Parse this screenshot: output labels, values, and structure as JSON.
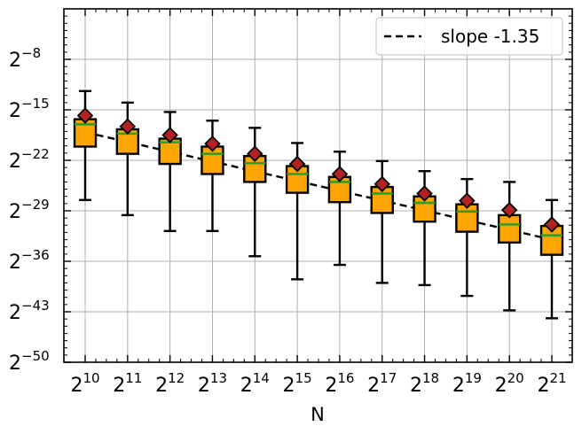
{
  "chart_data": {
    "type": "box",
    "xlabel": "N",
    "ylabel": "",
    "title": "",
    "x_base": 2,
    "y_base": 2,
    "x_exponents": [
      10,
      11,
      12,
      13,
      14,
      15,
      16,
      17,
      18,
      19,
      20,
      21
    ],
    "y_tick_exponents": [
      -8,
      -15,
      -22,
      -29,
      -36,
      -43,
      -50
    ],
    "ylim_exponent": [
      -50,
      -1
    ],
    "grid": true,
    "legend": {
      "position": "top-right",
      "entries": [
        {
          "label": "slope -1.35",
          "style": "dashed",
          "color": "#000000"
        }
      ]
    },
    "fit_line": {
      "slope": -1.35,
      "y_exponent_at_x10": -18.1,
      "y_exponent_at_x21": -33.0
    },
    "colors": {
      "box_fill": "#ffa500",
      "median": "#2ca02c",
      "mean_marker": "#b22222",
      "edge": "#000000",
      "grid": "#b0b0b0"
    },
    "boxes": [
      {
        "x_exp": 10,
        "whisker_low": -27.5,
        "q1": -20.1,
        "median": -17.0,
        "q3": -16.3,
        "whisker_high": -12.4,
        "mean": -15.8
      },
      {
        "x_exp": 11,
        "whisker_low": -29.6,
        "q1": -21.1,
        "median": -18.3,
        "q3": -17.7,
        "whisker_high": -14.0,
        "mean": -17.3
      },
      {
        "x_exp": 12,
        "whisker_low": -31.8,
        "q1": -22.5,
        "median": -19.5,
        "q3": -19.0,
        "whisker_high": -15.3,
        "mean": -18.5
      },
      {
        "x_exp": 13,
        "whisker_low": -31.8,
        "q1": -23.9,
        "median": -21.1,
        "q3": -20.1,
        "whisker_high": -16.5,
        "mean": -19.7
      },
      {
        "x_exp": 14,
        "whisker_low": -35.3,
        "q1": -25.0,
        "median": -22.4,
        "q3": -21.4,
        "whisker_high": -17.5,
        "mean": -21.1
      },
      {
        "x_exp": 15,
        "whisker_low": -38.5,
        "q1": -26.5,
        "median": -23.9,
        "q3": -22.8,
        "whisker_high": -19.6,
        "mean": -22.5
      },
      {
        "x_exp": 16,
        "whisker_low": -36.5,
        "q1": -27.8,
        "median": -25.0,
        "q3": -24.3,
        "whisker_high": -20.8,
        "mean": -23.9
      },
      {
        "x_exp": 17,
        "whisker_low": -39.0,
        "q1": -29.3,
        "median": -26.6,
        "q3": -25.7,
        "whisker_high": -22.1,
        "mean": -25.3
      },
      {
        "x_exp": 18,
        "whisker_low": -39.3,
        "q1": -30.5,
        "median": -27.9,
        "q3": -27.0,
        "whisker_high": -23.5,
        "mean": -26.6
      },
      {
        "x_exp": 19,
        "whisker_low": -40.8,
        "q1": -31.9,
        "median": -29.1,
        "q3": -28.1,
        "whisker_high": -24.6,
        "mean": -27.6
      },
      {
        "x_exp": 20,
        "whisker_low": -42.8,
        "q1": -33.4,
        "median": -30.9,
        "q3": -29.6,
        "whisker_high": -25.0,
        "mean": -28.9
      },
      {
        "x_exp": 21,
        "whisker_low": -43.9,
        "q1": -35.1,
        "median": -32.4,
        "q3": -31.1,
        "whisker_high": -27.5,
        "mean": -30.9
      }
    ]
  }
}
